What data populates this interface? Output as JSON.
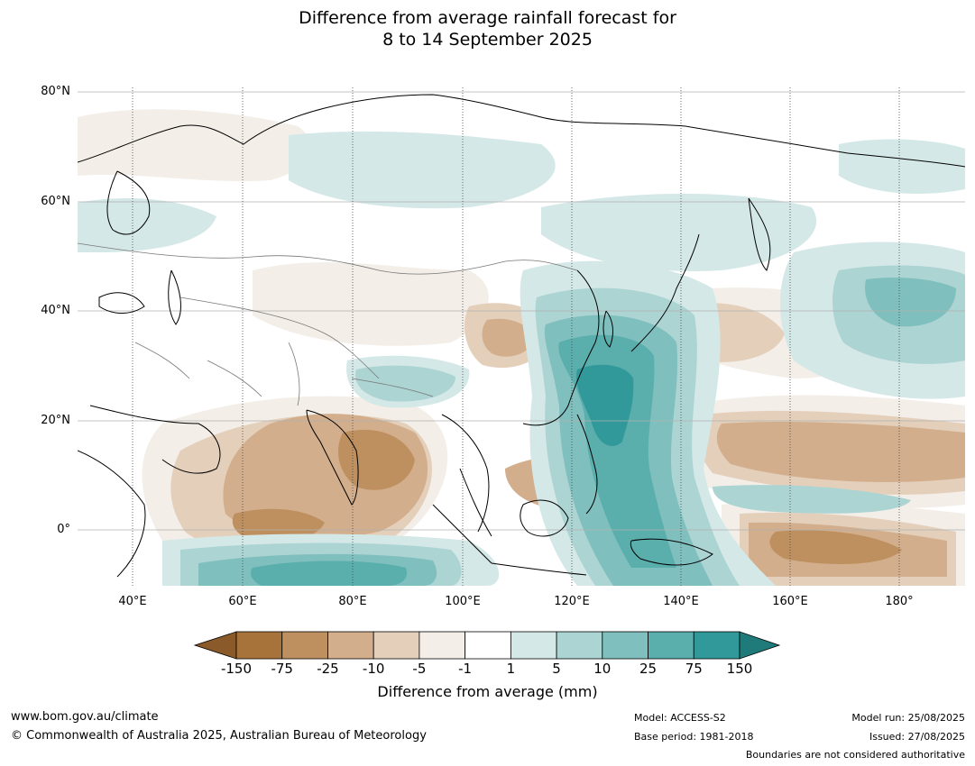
{
  "title_line1": "Difference from average rainfall forecast for",
  "title_line2": "8 to 14 September 2025",
  "lat_labels": [
    "80°N",
    "60°N",
    "40°N",
    "20°N",
    "0°"
  ],
  "lon_labels": [
    "40°E",
    "60°E",
    "80°E",
    "100°E",
    "120°E",
    "140°E",
    "160°E",
    "180°"
  ],
  "colorbar": {
    "ticks": [
      "-150",
      "-75",
      "-25",
      "-10",
      "-5",
      "-1",
      "1",
      "5",
      "10",
      "25",
      "75",
      "150"
    ],
    "colors": [
      "#a8733a",
      "#be905f",
      "#d2ae8c",
      "#e4cfbb",
      "#f3eee8",
      "#ffffff",
      "#d4e8e7",
      "#acd4d3",
      "#7fbfbe",
      "#5aaeac",
      "#31999a"
    ],
    "extend_low_color": "#8a5a2a",
    "extend_high_color": "#1f7a7a",
    "label": "Difference from average (mm)"
  },
  "footer": {
    "website": "www.bom.gov.au/climate",
    "copyright": "© Commonwealth of Australia 2025, Australian Bureau of Meteorology",
    "model": "Model: ACCESS-S2",
    "base_period": "Base period: 1981-2018",
    "model_run": "Model run: 25/08/2025",
    "issued": "Issued: 27/08/2025",
    "disclaimer": "Boundaries are not considered authoritative"
  }
}
